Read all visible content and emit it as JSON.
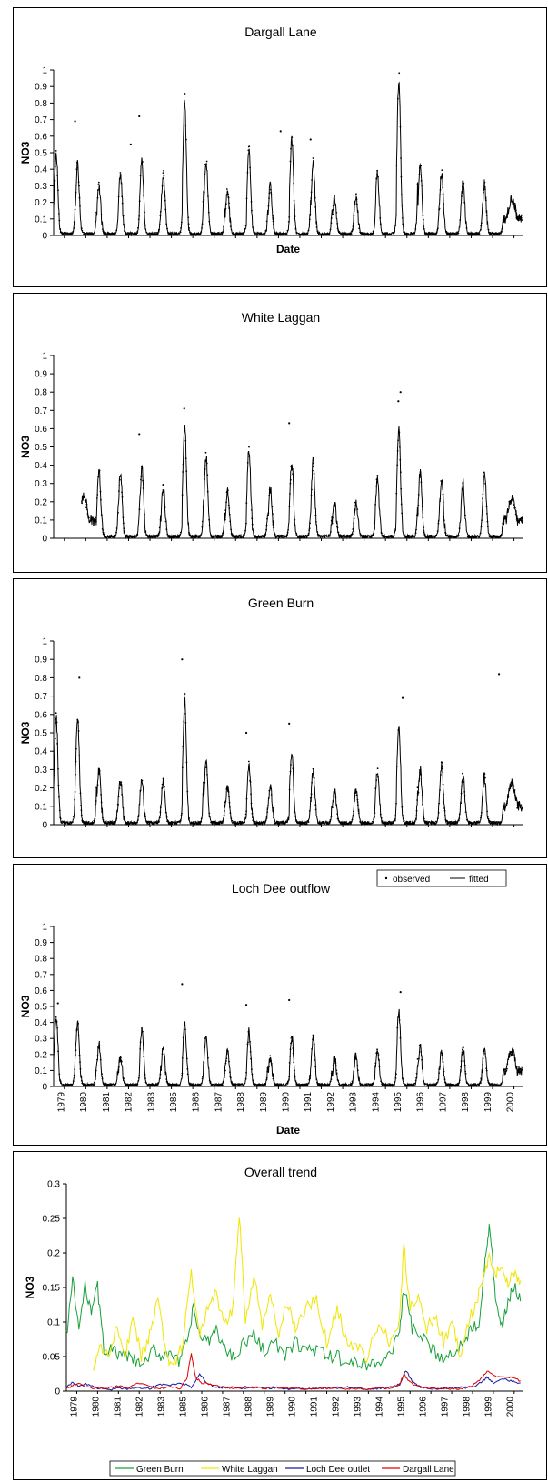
{
  "chart_data": [
    {
      "type": "scatter",
      "title": "Dargall Lane",
      "xlabel": "Date",
      "ylabel": "NO3",
      "ylim": [
        0,
        1
      ],
      "yticks": [
        "0",
        "0.1",
        "0.2",
        "0.3",
        "0.4",
        "0.5",
        "0.6",
        "0.7",
        "0.8",
        "0.9",
        "1"
      ],
      "xlim": [
        1979,
        2000.9
      ],
      "grid": false,
      "fitted_peaks": [
        {
          "x": 1979.1,
          "y": 0.48
        },
        {
          "x": 1980.1,
          "y": 0.43
        },
        {
          "x": 1981.1,
          "y": 0.3
        },
        {
          "x": 1982.1,
          "y": 0.37
        },
        {
          "x": 1983.1,
          "y": 0.46
        },
        {
          "x": 1984.1,
          "y": 0.37
        },
        {
          "x": 1985.1,
          "y": 0.82
        },
        {
          "x": 1986.1,
          "y": 0.46
        },
        {
          "x": 1987.1,
          "y": 0.27
        },
        {
          "x": 1988.1,
          "y": 0.52
        },
        {
          "x": 1989.1,
          "y": 0.3
        },
        {
          "x": 1990.1,
          "y": 0.58
        },
        {
          "x": 1991.1,
          "y": 0.45
        },
        {
          "x": 1992.1,
          "y": 0.23
        },
        {
          "x": 1993.1,
          "y": 0.24
        },
        {
          "x": 1994.1,
          "y": 0.37
        },
        {
          "x": 1995.1,
          "y": 0.94
        },
        {
          "x": 1996.1,
          "y": 0.43
        },
        {
          "x": 1997.1,
          "y": 0.38
        },
        {
          "x": 1998.1,
          "y": 0.32
        },
        {
          "x": 1999.1,
          "y": 0.31
        }
      ],
      "outliers": [
        {
          "x": 1980.0,
          "y": 0.69
        },
        {
          "x": 1983.0,
          "y": 0.72
        },
        {
          "x": 1982.6,
          "y": 0.55
        },
        {
          "x": 1989.6,
          "y": 0.63
        },
        {
          "x": 1991.0,
          "y": 0.58
        }
      ]
    },
    {
      "type": "scatter",
      "title": "White Laggan",
      "ylabel": "NO3",
      "ylim": [
        0,
        1
      ],
      "yticks": [
        "0",
        "0.1",
        "0.2",
        "0.3",
        "0.4",
        "0.5",
        "0.6",
        "0.7",
        "0.8",
        "0.9",
        "1"
      ],
      "xlim": [
        1979,
        2000.9
      ],
      "data_start": 1980.3,
      "grid": false,
      "fitted_peaks": [
        {
          "x": 1981.1,
          "y": 0.37
        },
        {
          "x": 1982.1,
          "y": 0.36
        },
        {
          "x": 1983.1,
          "y": 0.38
        },
        {
          "x": 1984.1,
          "y": 0.28
        },
        {
          "x": 1985.1,
          "y": 0.63
        },
        {
          "x": 1986.1,
          "y": 0.45
        },
        {
          "x": 1987.1,
          "y": 0.26
        },
        {
          "x": 1988.1,
          "y": 0.48
        },
        {
          "x": 1989.1,
          "y": 0.27
        },
        {
          "x": 1990.1,
          "y": 0.42
        },
        {
          "x": 1991.1,
          "y": 0.42
        },
        {
          "x": 1992.1,
          "y": 0.2
        },
        {
          "x": 1993.1,
          "y": 0.2
        },
        {
          "x": 1994.1,
          "y": 0.33
        },
        {
          "x": 1995.1,
          "y": 0.6
        },
        {
          "x": 1996.1,
          "y": 0.35
        },
        {
          "x": 1997.1,
          "y": 0.33
        },
        {
          "x": 1998.1,
          "y": 0.3
        },
        {
          "x": 1999.1,
          "y": 0.37
        }
      ],
      "outliers": [
        {
          "x": 1983.0,
          "y": 0.57
        },
        {
          "x": 1985.1,
          "y": 0.71
        },
        {
          "x": 1990.0,
          "y": 0.63
        },
        {
          "x": 1995.2,
          "y": 0.8
        },
        {
          "x": 1995.1,
          "y": 0.75
        }
      ]
    },
    {
      "type": "scatter",
      "title": "Green Burn",
      "ylabel": "NO3",
      "ylim": [
        0,
        1
      ],
      "yticks": [
        "0",
        "0.1",
        "0.2",
        "0.3",
        "0.4",
        "0.5",
        "0.6",
        "0.7",
        "0.8",
        "0.9",
        "1"
      ],
      "xlim": [
        1979,
        2000.9
      ],
      "grid": false,
      "fitted_peaks": [
        {
          "x": 1979.1,
          "y": 0.58
        },
        {
          "x": 1980.1,
          "y": 0.59
        },
        {
          "x": 1981.1,
          "y": 0.3
        },
        {
          "x": 1982.1,
          "y": 0.24
        },
        {
          "x": 1983.1,
          "y": 0.26
        },
        {
          "x": 1984.1,
          "y": 0.24
        },
        {
          "x": 1985.1,
          "y": 0.68
        },
        {
          "x": 1986.1,
          "y": 0.33
        },
        {
          "x": 1987.1,
          "y": 0.21
        },
        {
          "x": 1988.1,
          "y": 0.32
        },
        {
          "x": 1989.1,
          "y": 0.2
        },
        {
          "x": 1990.1,
          "y": 0.4
        },
        {
          "x": 1991.1,
          "y": 0.29
        },
        {
          "x": 1992.1,
          "y": 0.18
        },
        {
          "x": 1993.1,
          "y": 0.19
        },
        {
          "x": 1994.1,
          "y": 0.3
        },
        {
          "x": 1995.1,
          "y": 0.55
        },
        {
          "x": 1996.1,
          "y": 0.3
        },
        {
          "x": 1997.1,
          "y": 0.33
        },
        {
          "x": 1998.1,
          "y": 0.27
        },
        {
          "x": 1999.1,
          "y": 0.26
        }
      ],
      "outliers": [
        {
          "x": 1980.2,
          "y": 0.8
        },
        {
          "x": 1985.0,
          "y": 0.9
        },
        {
          "x": 1988.0,
          "y": 0.5
        },
        {
          "x": 1990.0,
          "y": 0.55
        },
        {
          "x": 1995.3,
          "y": 0.69
        },
        {
          "x": 1999.8,
          "y": 0.82
        }
      ]
    },
    {
      "type": "scatter",
      "title": "Loch Dee outflow",
      "xlabel": "Date",
      "ylabel": "NO3",
      "ylim": [
        0,
        1
      ],
      "yticks": [
        "0",
        "0.1",
        "0.2",
        "0.3",
        "0.4",
        "0.5",
        "0.6",
        "0.7",
        "0.8",
        "0.9",
        "1"
      ],
      "xlim": [
        1979,
        2000.9
      ],
      "xticks": [
        "1979",
        "1980",
        "1981",
        "1982",
        "1983",
        "1985",
        "1986",
        "1987",
        "1988",
        "1989",
        "1990",
        "1991",
        "1992",
        "1993",
        "1994",
        "1995",
        "1996",
        "1997",
        "1998",
        "1999",
        "2000"
      ],
      "legend": {
        "placement": "top-right",
        "entries": [
          "observed",
          "fitted"
        ]
      },
      "grid": false,
      "fitted_peaks": [
        {
          "x": 1979.1,
          "y": 0.45
        },
        {
          "x": 1980.1,
          "y": 0.4
        },
        {
          "x": 1981.1,
          "y": 0.26
        },
        {
          "x": 1982.1,
          "y": 0.18
        },
        {
          "x": 1983.1,
          "y": 0.36
        },
        {
          "x": 1984.1,
          "y": 0.25
        },
        {
          "x": 1985.1,
          "y": 0.4
        },
        {
          "x": 1986.1,
          "y": 0.33
        },
        {
          "x": 1987.1,
          "y": 0.22
        },
        {
          "x": 1988.1,
          "y": 0.34
        },
        {
          "x": 1989.1,
          "y": 0.18
        },
        {
          "x": 1990.1,
          "y": 0.31
        },
        {
          "x": 1991.1,
          "y": 0.3
        },
        {
          "x": 1992.1,
          "y": 0.18
        },
        {
          "x": 1993.1,
          "y": 0.19
        },
        {
          "x": 1994.1,
          "y": 0.23
        },
        {
          "x": 1995.1,
          "y": 0.47
        },
        {
          "x": 1996.1,
          "y": 0.25
        },
        {
          "x": 1997.1,
          "y": 0.22
        },
        {
          "x": 1998.1,
          "y": 0.24
        },
        {
          "x": 1999.1,
          "y": 0.23
        }
      ],
      "outliers": [
        {
          "x": 1979.2,
          "y": 0.52
        },
        {
          "x": 1985.0,
          "y": 0.64
        },
        {
          "x": 1988.0,
          "y": 0.51
        },
        {
          "x": 1990.0,
          "y": 0.54
        },
        {
          "x": 1995.2,
          "y": 0.59
        }
      ]
    },
    {
      "type": "line",
      "title": "Overall trend",
      "ylabel": "NO3",
      "ylim": [
        0,
        0.3
      ],
      "yticks": [
        "0",
        "0.05",
        "0.1",
        "0.15",
        "0.2",
        "0.25",
        "0.3"
      ],
      "xlim": [
        1979,
        2000.9
      ],
      "xticks": [
        "1979",
        "1980",
        "1981",
        "1982",
        "1983",
        "1985",
        "1986",
        "1987",
        "1988",
        "1989",
        "1990",
        "1991",
        "1992",
        "1993",
        "1994",
        "1995",
        "1996",
        "1997",
        "1998",
        "1999",
        "2000"
      ],
      "legend": {
        "placement": "bottom"
      },
      "grid": false,
      "series": [
        {
          "name": "Green Burn",
          "color": "#19a03c",
          "x": [
            1979.0,
            1979.3,
            1979.6,
            1979.9,
            1980.2,
            1980.5,
            1980.8,
            1981.2,
            1981.6,
            1982.0,
            1982.4,
            1982.8,
            1983.2,
            1983.6,
            1984.0,
            1984.4,
            1984.8,
            1985.1,
            1985.4,
            1985.8,
            1986.2,
            1986.6,
            1987.0,
            1987.5,
            1988.0,
            1988.5,
            1989.0,
            1989.5,
            1990.0,
            1990.5,
            1991.0,
            1991.5,
            1992.0,
            1992.5,
            1993.0,
            1993.5,
            1994.0,
            1994.5,
            1995.0,
            1995.2,
            1995.6,
            1996.0,
            1996.5,
            1997.0,
            1997.5,
            1998.0,
            1998.4,
            1998.8,
            1999.1,
            1999.3,
            1999.6,
            1999.9,
            2000.2,
            2000.5,
            2000.8
          ],
          "y": [
            0.08,
            0.16,
            0.09,
            0.15,
            0.12,
            0.15,
            0.06,
            0.06,
            0.05,
            0.05,
            0.04,
            0.04,
            0.06,
            0.05,
            0.06,
            0.04,
            0.07,
            0.12,
            0.08,
            0.07,
            0.09,
            0.06,
            0.05,
            0.07,
            0.08,
            0.06,
            0.07,
            0.05,
            0.07,
            0.06,
            0.06,
            0.05,
            0.05,
            0.04,
            0.04,
            0.04,
            0.04,
            0.05,
            0.09,
            0.15,
            0.09,
            0.08,
            0.06,
            0.05,
            0.05,
            0.07,
            0.09,
            0.1,
            0.19,
            0.24,
            0.14,
            0.09,
            0.13,
            0.15,
            0.13
          ]
        },
        {
          "name": "White Laggan",
          "color": "#f2e600",
          "x": [
            1980.3,
            1980.6,
            1981.0,
            1981.4,
            1981.8,
            1982.2,
            1982.6,
            1983.0,
            1983.4,
            1983.8,
            1984.2,
            1984.6,
            1985.0,
            1985.4,
            1985.8,
            1986.2,
            1986.6,
            1987.0,
            1987.3,
            1987.6,
            1988.0,
            1988.4,
            1988.8,
            1989.2,
            1989.6,
            1990.0,
            1990.5,
            1991.0,
            1991.5,
            1992.0,
            1992.5,
            1993.0,
            1993.5,
            1994.0,
            1994.5,
            1995.0,
            1995.2,
            1995.5,
            1995.9,
            1996.3,
            1996.7,
            1997.1,
            1997.5,
            1997.9,
            1998.3,
            1998.7,
            1999.0,
            1999.3,
            1999.6,
            1999.9,
            2000.2,
            2000.5,
            2000.8
          ],
          "y": [
            0.03,
            0.06,
            0.05,
            0.09,
            0.05,
            0.1,
            0.05,
            0.08,
            0.13,
            0.05,
            0.04,
            0.07,
            0.17,
            0.08,
            0.12,
            0.14,
            0.09,
            0.12,
            0.26,
            0.1,
            0.17,
            0.09,
            0.14,
            0.08,
            0.13,
            0.09,
            0.12,
            0.13,
            0.07,
            0.12,
            0.07,
            0.06,
            0.05,
            0.1,
            0.07,
            0.1,
            0.21,
            0.12,
            0.14,
            0.09,
            0.11,
            0.07,
            0.1,
            0.05,
            0.1,
            0.13,
            0.16,
            0.19,
            0.17,
            0.18,
            0.16,
            0.17,
            0.16
          ]
        },
        {
          "name": "Loch Dee outlet",
          "color": "#1a1a9c",
          "x": [
            1979.0,
            1979.3,
            1979.6,
            1980.0,
            1980.5,
            1981.0,
            1981.5,
            1982.0,
            1982.5,
            1983.0,
            1983.5,
            1984.0,
            1984.5,
            1985.0,
            1985.4,
            1985.8,
            1986.2,
            1986.6,
            1987.0,
            1987.5,
            1988.0,
            1988.5,
            1989.0,
            1989.5,
            1990.0,
            1990.5,
            1991.0,
            1991.5,
            1992.0,
            1992.5,
            1993.0,
            1993.5,
            1994.0,
            1994.5,
            1995.0,
            1995.3,
            1995.6,
            1996.0,
            1996.5,
            1997.0,
            1997.5,
            1998.0,
            1998.5,
            1999.0,
            1999.2,
            1999.5,
            2000.0,
            2000.4,
            2000.8
          ],
          "y": [
            0.006,
            0.012,
            0.008,
            0.01,
            0.004,
            0.002,
            0.004,
            0.003,
            0.005,
            0.004,
            0.01,
            0.008,
            0.012,
            0.006,
            0.025,
            0.01,
            0.006,
            0.005,
            0.006,
            0.004,
            0.006,
            0.004,
            0.005,
            0.003,
            0.004,
            0.003,
            0.004,
            0.004,
            0.005,
            0.006,
            0.004,
            0.003,
            0.004,
            0.005,
            0.01,
            0.03,
            0.015,
            0.006,
            0.004,
            0.003,
            0.004,
            0.005,
            0.006,
            0.015,
            0.02,
            0.012,
            0.018,
            0.014,
            0.012
          ]
        },
        {
          "name": "Dargall Lane",
          "color": "#e00000",
          "x": [
            1979.0,
            1979.3,
            1979.6,
            1980.0,
            1980.5,
            1981.0,
            1981.5,
            1982.0,
            1982.5,
            1983.0,
            1983.5,
            1984.0,
            1984.5,
            1984.8,
            1985.0,
            1985.2,
            1985.5,
            1986.0,
            1986.5,
            1987.0,
            1987.5,
            1988.0,
            1988.5,
            1989.0,
            1989.5,
            1990.0,
            1990.5,
            1991.0,
            1991.5,
            1992.0,
            1992.5,
            1993.0,
            1993.5,
            1994.0,
            1994.5,
            1995.0,
            1995.2,
            1995.5,
            1996.0,
            1996.5,
            1997.0,
            1997.5,
            1998.0,
            1998.5,
            1999.0,
            1999.2,
            1999.5,
            2000.0,
            2000.4,
            2000.8
          ],
          "y": [
            0.004,
            0.008,
            0.01,
            0.006,
            0.004,
            0.004,
            0.008,
            0.005,
            0.012,
            0.006,
            0.004,
            0.006,
            0.004,
            0.02,
            0.055,
            0.02,
            0.012,
            0.01,
            0.006,
            0.004,
            0.006,
            0.005,
            0.004,
            0.006,
            0.004,
            0.005,
            0.003,
            0.004,
            0.004,
            0.005,
            0.003,
            0.004,
            0.003,
            0.005,
            0.004,
            0.01,
            0.025,
            0.012,
            0.006,
            0.004,
            0.004,
            0.003,
            0.004,
            0.008,
            0.02,
            0.03,
            0.022,
            0.02,
            0.02,
            0.015
          ]
        }
      ]
    }
  ]
}
